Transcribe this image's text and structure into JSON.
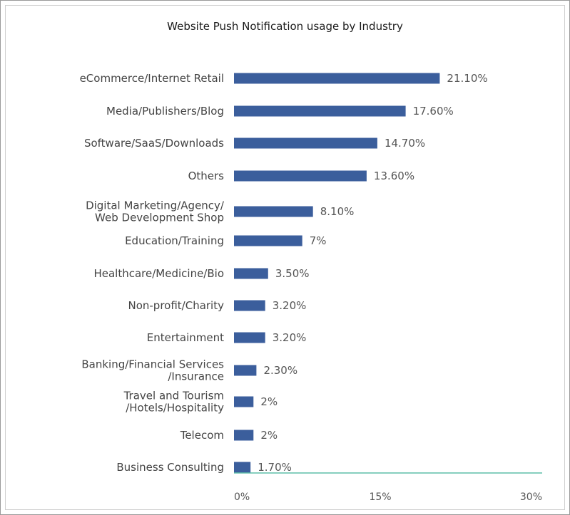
{
  "chart_data": {
    "type": "bar",
    "orientation": "horizontal",
    "title": "Website Push Notification usage by Industry",
    "xlabel": "",
    "ylabel": "",
    "xlim": [
      0,
      30
    ],
    "ticks": [
      {
        "value": 0,
        "label": "0%"
      },
      {
        "value": 15,
        "label": "15%"
      },
      {
        "value": 30,
        "label": "30%"
      }
    ],
    "grid": false,
    "colors": {
      "bar": "#3b5e9c",
      "axis": "#5fbfa8"
    },
    "categories": [
      [
        "eCommerce/Internet Retail"
      ],
      [
        "Media/Publishers/Blog"
      ],
      [
        "Software/SaaS/Downloads"
      ],
      [
        "Others"
      ],
      [
        "Digital Marketing/Agency/",
        "Web Development Shop"
      ],
      [
        "Education/Training"
      ],
      [
        "Healthcare/Medicine/Bio"
      ],
      [
        "Non-profit/Charity"
      ],
      [
        "Entertainment"
      ],
      [
        "Banking/Financial Services",
        "/Insurance"
      ],
      [
        "Travel and Tourism",
        "/Hotels/Hospitality"
      ],
      [
        "Telecom"
      ],
      [
        "Business Consulting"
      ]
    ],
    "values": [
      21.1,
      17.6,
      14.7,
      13.6,
      8.1,
      7,
      3.5,
      3.2,
      3.2,
      2.3,
      2,
      2,
      1.7
    ],
    "value_labels": [
      "21.10%",
      "17.60%",
      "14.70%",
      "13.60%",
      "8.10%",
      "7%",
      "3.50%",
      "3.20%",
      "3.20%",
      "2.30%",
      "2%",
      "2%",
      "1.70%"
    ]
  }
}
